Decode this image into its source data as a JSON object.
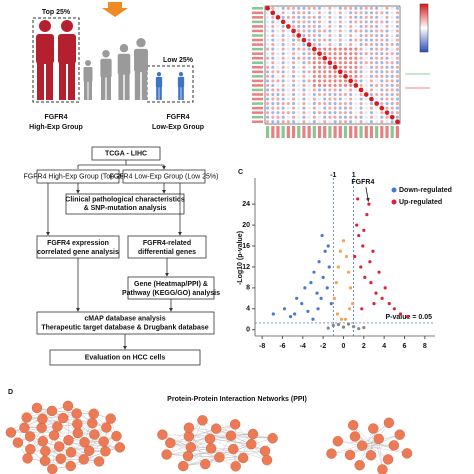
{
  "panel_a": {
    "top_label": "Top 25%",
    "low_label": "Low 25%",
    "high_group": [
      "FGFR4",
      "High-Exp Group"
    ],
    "low_group": [
      "FGFR4",
      "Low-Exp Group"
    ]
  },
  "flowchart": {
    "source": "TCGA - LIHC",
    "high": "FGFR4 High-Exp Group (Top 25%)",
    "low": "FGFR4 Low-Exp Group (Low 25%)",
    "clinical": [
      "Clinical pathological characteristics",
      "& SNP-mutation analysis"
    ],
    "correlated": [
      "FGFR4 expression",
      "correlated gene analysis"
    ],
    "differential": [
      "FGFR4-related",
      "differential genes"
    ],
    "enrichment": [
      "Gene (Heatmap/PPI) &",
      "Pathway (KEGG/GO) analysis"
    ],
    "cmap": [
      "cMAP database analysis",
      "Therapeutic target database & Drugbank database"
    ],
    "evaluation": "Evaluation on HCC cells"
  },
  "chart_data": {
    "type": "scatter",
    "panel_label": "C",
    "ylabel": "-Log10 (p-value)",
    "xlim": [
      -8.7,
      9
    ],
    "ylim": [
      -1.2,
      29
    ],
    "xticks": [
      -8,
      -6,
      -4,
      -2,
      0,
      2,
      4,
      6,
      8
    ],
    "yticks": [
      0,
      4,
      8,
      12,
      16,
      20,
      24
    ],
    "vlines": [
      -1,
      1
    ],
    "hline": 1.3,
    "hline_label": "P-value = 0.05",
    "annotation": {
      "text": "FGFR4",
      "x": 2.5,
      "y": 24
    },
    "series": [
      {
        "name": "Down-regulated",
        "color": "#4a78d0",
        "x": [
          -6.9,
          -5.8,
          -5.2,
          -4.6,
          -4.1,
          -3.8,
          -3.5,
          -3.2,
          -2.9,
          -2.6,
          -2.4,
          -2.2,
          -2.0,
          -1.8,
          -1.6,
          -1.4,
          -1.2,
          -3.0,
          -2.5,
          -4.8,
          -1.5,
          -2.1
        ],
        "values": [
          3,
          4,
          2.5,
          6,
          5,
          8,
          3.5,
          9,
          11,
          7,
          13,
          6,
          10,
          15,
          8,
          12,
          5,
          2,
          4,
          3,
          16,
          18
        ]
      },
      {
        "name": "Up-regulated",
        "color": "#e0203a",
        "x": [
          1.1,
          1.3,
          1.5,
          1.7,
          1.9,
          2.1,
          2.3,
          2.5,
          2.7,
          2.9,
          3.2,
          3.5,
          3.8,
          4.1,
          4.5,
          5.0,
          5.6,
          6.3,
          1.4,
          2.0,
          2.6,
          3.0,
          1.8
        ],
        "values": [
          14,
          20,
          18,
          12,
          16,
          10,
          22,
          24,
          9,
          15,
          7,
          11,
          6,
          8,
          5,
          4,
          3,
          2.5,
          25,
          19,
          13,
          5,
          4
        ]
      },
      {
        "color": "#f2a45e",
        "x": [
          -0.9,
          -0.7,
          -0.5,
          -0.3,
          0,
          0.3,
          0.5,
          0.7,
          0.9,
          -0.6,
          0.6,
          -0.2,
          0.2
        ],
        "values": [
          6,
          9,
          12,
          15,
          17,
          14,
          11,
          8,
          5,
          3,
          4,
          2,
          2
        ]
      },
      {
        "color": "#888888",
        "x": [
          -1.5,
          -1,
          -0.5,
          0,
          0.5,
          1,
          1.5,
          2
        ],
        "values": [
          0.3,
          0.8,
          1,
          0.5,
          1.1,
          0.6,
          0.2,
          0.4
        ]
      }
    ]
  },
  "panel_d": {
    "panel_label": "D",
    "title": "Protein-Protein Interaction Networks (PPI)"
  }
}
